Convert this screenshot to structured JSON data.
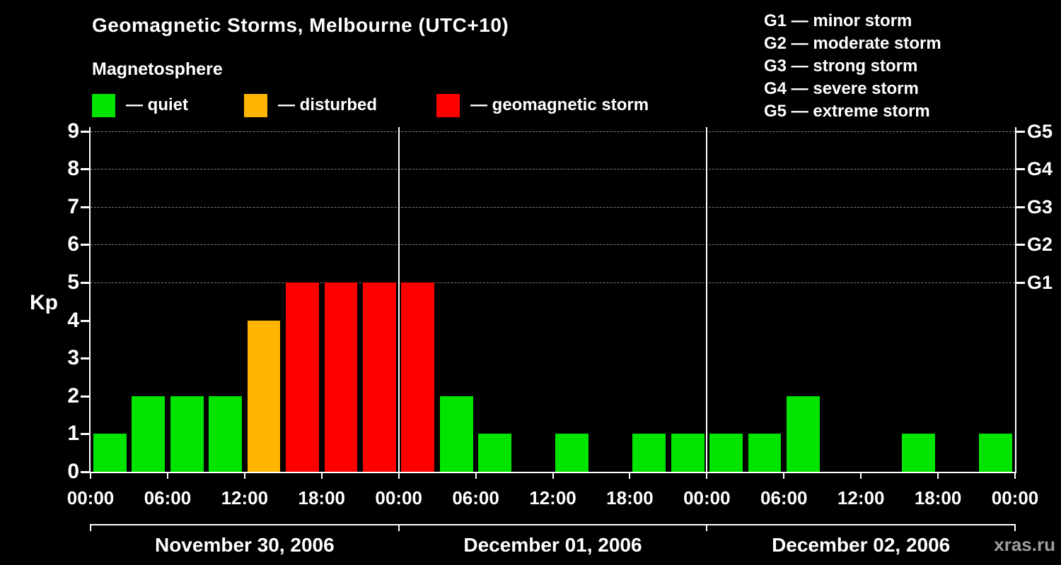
{
  "title": "Geomagnetic Storms, Melbourne (UTC+10)",
  "subtitle": "Magnetosphere",
  "watermark": "xras.ru",
  "legend": [
    {
      "label": "— quiet",
      "color": "#00e400"
    },
    {
      "label": "— disturbed",
      "color": "#ffb400"
    },
    {
      "label": "— geomagnetic storm",
      "color": "#ff0000"
    }
  ],
  "g_legend": [
    "G1 — minor storm",
    "G2 — moderate storm",
    "G3 — strong storm",
    "G4 — severe storm",
    "G5 — extreme storm"
  ],
  "chart_data": {
    "type": "bar",
    "title": "Geomagnetic Storms, Melbourne (UTC+10)",
    "ylabel": "Kp",
    "ylim": [
      0,
      9
    ],
    "y_ticks": [
      0,
      1,
      2,
      3,
      4,
      5,
      6,
      7,
      8,
      9
    ],
    "gridlines": [
      5,
      6,
      7,
      8,
      9
    ],
    "right_axis_labels": [
      {
        "kp": 5,
        "label": "G1"
      },
      {
        "kp": 6,
        "label": "G2"
      },
      {
        "kp": 7,
        "label": "G3"
      },
      {
        "kp": 8,
        "label": "G4"
      },
      {
        "kp": 9,
        "label": "G5"
      }
    ],
    "x_tick_labels": [
      "00:00",
      "06:00",
      "12:00",
      "18:00",
      "00:00",
      "06:00",
      "12:00",
      "18:00",
      "00:00",
      "06:00",
      "12:00",
      "18:00",
      "00:00"
    ],
    "hours_per_bar": 3,
    "days": [
      {
        "date": "November 30, 2006",
        "kp": [
          1,
          2,
          2,
          2,
          4,
          5,
          5,
          5
        ]
      },
      {
        "date": "December 01, 2006",
        "kp": [
          5,
          2,
          1,
          0,
          1,
          0,
          1,
          1
        ]
      },
      {
        "date": "December 02, 2006",
        "kp": [
          1,
          1,
          2,
          0,
          0,
          1,
          0,
          1
        ]
      }
    ],
    "color_rules": {
      "quiet_max_kp": 3,
      "disturbed_kp": 4,
      "storm_min_kp": 5
    },
    "colors": {
      "quiet": "#00e400",
      "disturbed": "#ffb400",
      "storm": "#ff0000"
    }
  }
}
